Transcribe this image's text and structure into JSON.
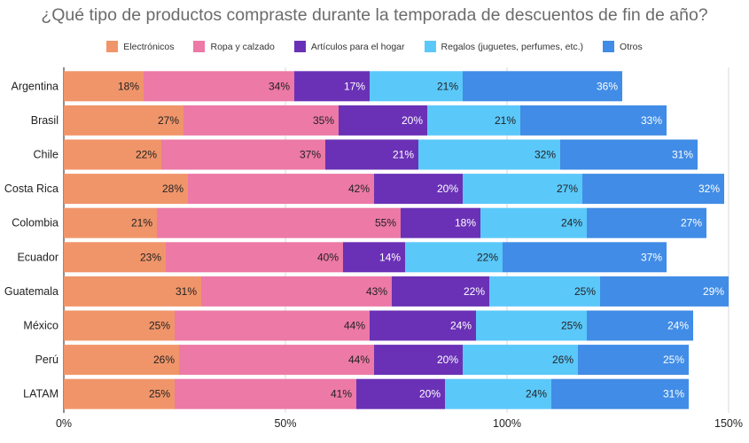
{
  "chart_data": {
    "type": "bar",
    "orientation": "horizontal",
    "stacked": true,
    "title": "¿Qué tipo de productos compraste durante la temporada de descuentos de fin de año?",
    "categories": [
      "Argentina",
      "Brasil",
      "Chile",
      "Costa Rica",
      "Colombia",
      "Ecuador",
      "Guatemala",
      "México",
      "Perú",
      "LATAM"
    ],
    "series": [
      {
        "name": "Electrónicos",
        "color": "#F0956A",
        "label_color": "#222222",
        "values": [
          18,
          27,
          22,
          28,
          21,
          23,
          31,
          25,
          26,
          25
        ]
      },
      {
        "name": "Ropa y calzado",
        "color": "#EC79A6",
        "label_color": "#222222",
        "values": [
          34,
          35,
          37,
          42,
          55,
          40,
          43,
          44,
          44,
          41
        ]
      },
      {
        "name": "Artículos para el hogar",
        "color": "#6A31B6",
        "label_color": "#ffffff",
        "values": [
          17,
          20,
          21,
          20,
          18,
          14,
          22,
          24,
          20,
          20
        ]
      },
      {
        "name": "Regalos (juguetes, perfumes, etc.)",
        "color": "#5BC8FA",
        "label_color": "#222222",
        "values": [
          21,
          21,
          32,
          27,
          24,
          22,
          25,
          25,
          26,
          24
        ]
      },
      {
        "name": "Otros",
        "color": "#418CE6",
        "label_color": "#ffffff",
        "values": [
          36,
          33,
          31,
          32,
          27,
          37,
          29,
          24,
          25,
          31
        ]
      }
    ],
    "xlim": [
      0,
      150
    ],
    "xticks": [
      0,
      50,
      100,
      150
    ],
    "xtick_labels": [
      "0%",
      "50%",
      "100%",
      "150%"
    ],
    "value_suffix": "%",
    "grid": "vertical",
    "legend_position": "top"
  }
}
